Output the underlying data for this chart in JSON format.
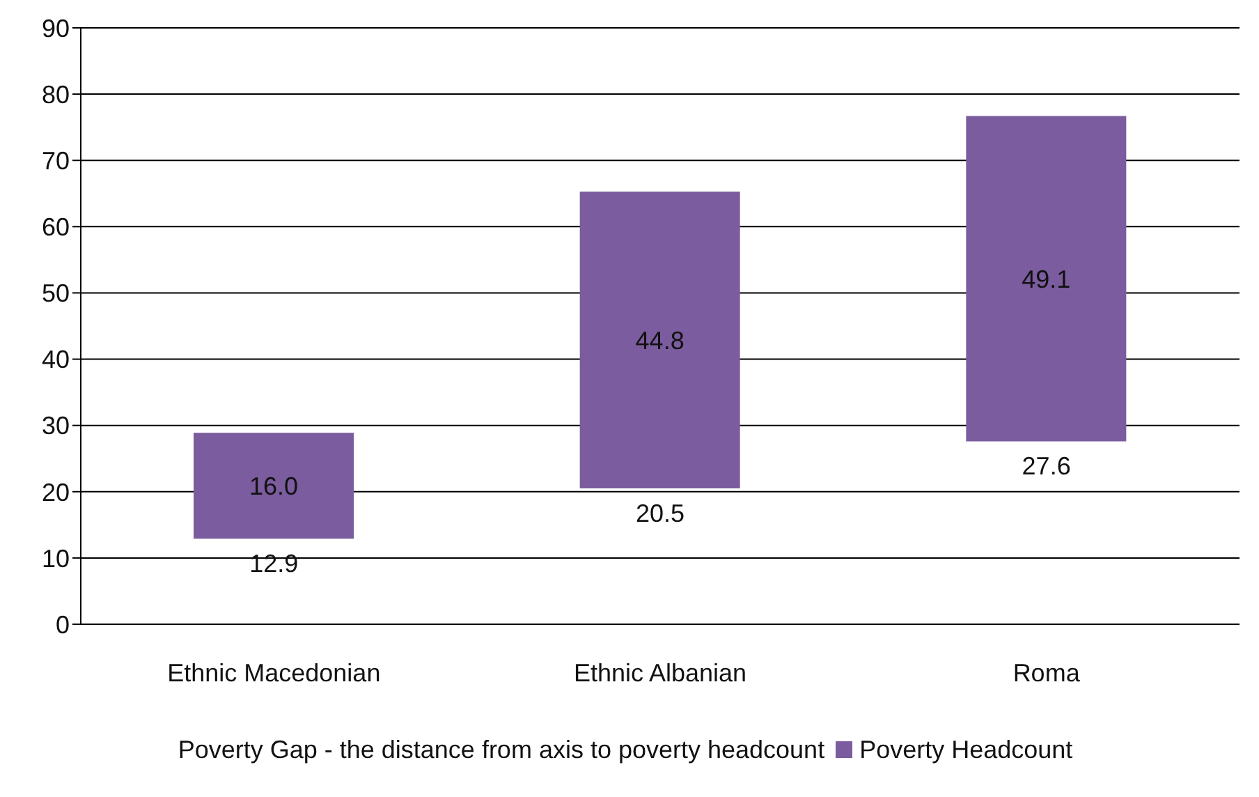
{
  "chart_data": {
    "type": "bar",
    "categories": [
      "Ethnic Macedonian",
      "Ethnic Albanian",
      "Roma"
    ],
    "series": [
      {
        "name": "Poverty Headcount",
        "color": "#7b5c9e",
        "values": [
          16.0,
          44.8,
          49.1
        ],
        "base": [
          12.9,
          20.5,
          27.6
        ],
        "value_labels": [
          "16.0",
          "44.8",
          "49.1"
        ]
      }
    ],
    "annotations": [
      {
        "text": "12.9",
        "x": "Ethnic Macedonian",
        "y": 12.9
      },
      {
        "text": "20.5",
        "x": "Ethnic Albanian",
        "y": 20.5
      },
      {
        "text": "27.6",
        "x": "Roma",
        "y": 27.6
      },
      "Poverty Gap - the distance from axis to poverty headcount"
    ],
    "ylim": [
      0,
      90
    ],
    "yticks": [
      0,
      10,
      20,
      30,
      40,
      50,
      60,
      70,
      80,
      90
    ],
    "grid": "y",
    "legend": "bottom"
  }
}
